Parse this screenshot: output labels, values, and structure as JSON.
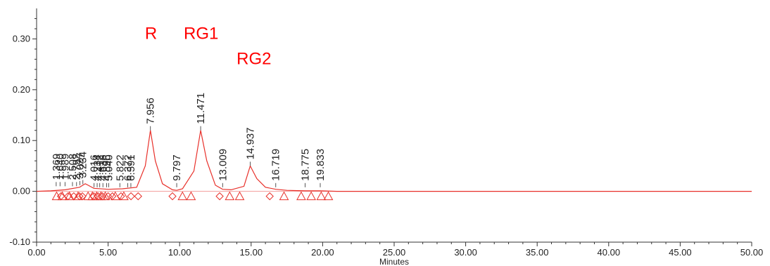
{
  "chart_data": {
    "type": "line",
    "xlabel": "Minutes",
    "ylabel": "",
    "xlim": [
      0,
      50
    ],
    "ylim": [
      -0.1,
      0.36
    ],
    "x_ticks": [
      "0.00",
      "5.00",
      "10.00",
      "15.00",
      "20.00",
      "25.00",
      "30.00",
      "35.00",
      "40.00",
      "45.00",
      "50.00"
    ],
    "y_ticks": [
      "-0.10",
      "0.00",
      "0.10",
      "0.20",
      "0.30"
    ],
    "y_tick_values": [
      -0.1,
      0.0,
      0.1,
      0.2,
      0.3
    ],
    "grid": false,
    "line_color": "#e8302a",
    "annotation_color": "#ff0000",
    "series": [
      {
        "x": [
          0,
          1.0,
          2.0,
          3.0,
          3.4,
          3.6,
          4.0,
          5.0,
          6.0,
          7.0,
          7.6,
          7.956,
          8.3,
          8.8,
          9.5,
          9.797,
          10.2,
          11.0,
          11.471,
          11.9,
          12.5,
          13.009,
          13.6,
          14.5,
          14.937,
          15.4,
          16.0,
          16.719,
          17.5,
          18.775,
          19.833,
          21,
          30,
          40,
          50
        ],
        "y": [
          0,
          0.001,
          0.003,
          0.008,
          0.015,
          0.012,
          0.006,
          0.004,
          0.005,
          0.008,
          0.05,
          0.12,
          0.06,
          0.015,
          0.003,
          0.002,
          0.005,
          0.04,
          0.12,
          0.06,
          0.012,
          0.004,
          0.003,
          0.01,
          0.05,
          0.025,
          0.008,
          0.004,
          0.002,
          0.001,
          0.001,
          0,
          0,
          0,
          0
        ]
      }
    ],
    "peaks": [
      {
        "rt": 1.369,
        "label": "1.369",
        "height": 0.01
      },
      {
        "rt": 1.64,
        "label": "1.640",
        "height": 0.01
      },
      {
        "rt": 1.989,
        "label": "1.989",
        "height": 0.01
      },
      {
        "rt": 2.508,
        "label": "2.508",
        "height": 0.01
      },
      {
        "rt": 2.792,
        "label": "2.792",
        "height": 0.01
      },
      {
        "rt": 3.027,
        "label": "3.027",
        "height": 0.012
      },
      {
        "rt": 3.234,
        "label": "3.234",
        "height": 0.014
      },
      {
        "rt": 4.016,
        "label": "4.016",
        "height": 0.008
      },
      {
        "rt": 4.234,
        "label": "4.234",
        "height": 0.008
      },
      {
        "rt": 4.412,
        "label": "4.412",
        "height": 0.008
      },
      {
        "rt": 4.638,
        "label": "4.638",
        "height": 0.008
      },
      {
        "rt": 4.896,
        "label": "4.896",
        "height": 0.008
      },
      {
        "rt": 5.04,
        "label": "5.040",
        "height": 0.008
      },
      {
        "rt": 5.822,
        "label": "5.822",
        "height": 0.008
      },
      {
        "rt": 6.372,
        "label": "6.372",
        "height": 0.008
      },
      {
        "rt": 6.591,
        "label": "6.591",
        "height": 0.008
      },
      {
        "rt": 7.956,
        "label": "7.956",
        "height": 0.12
      },
      {
        "rt": 9.797,
        "label": "9.797",
        "height": 0.008
      },
      {
        "rt": 11.471,
        "label": "11.471",
        "height": 0.12
      },
      {
        "rt": 13.009,
        "label": "13.009",
        "height": 0.008
      },
      {
        "rt": 14.937,
        "label": "14.937",
        "height": 0.05
      },
      {
        "rt": 16.719,
        "label": "16.719",
        "height": 0.008
      },
      {
        "rt": 18.775,
        "label": "18.775",
        "height": 0.008
      },
      {
        "rt": 19.833,
        "label": "19.833",
        "height": 0.008
      }
    ],
    "markers": {
      "triangles": [
        1.4,
        1.8,
        2.3,
        2.9,
        3.6,
        3.9,
        4.2,
        4.5,
        4.8,
        5.5,
        6.1,
        10.2,
        10.8,
        13.5,
        14.2,
        17.3,
        18.5,
        19.2,
        19.9,
        20.4
      ],
      "diamonds": [
        1.7,
        2.2,
        2.6,
        3.0,
        3.2,
        4.0,
        4.3,
        4.6,
        5.0,
        5.3,
        5.9,
        6.6,
        7.1,
        9.5,
        12.8,
        16.3
      ]
    },
    "annotations": [
      {
        "text": "R",
        "x": 8.0,
        "y": 0.3
      },
      {
        "text": "RG1",
        "x": 11.5,
        "y": 0.3
      },
      {
        "text": "RG2",
        "x": 15.2,
        "y": 0.25
      }
    ]
  }
}
